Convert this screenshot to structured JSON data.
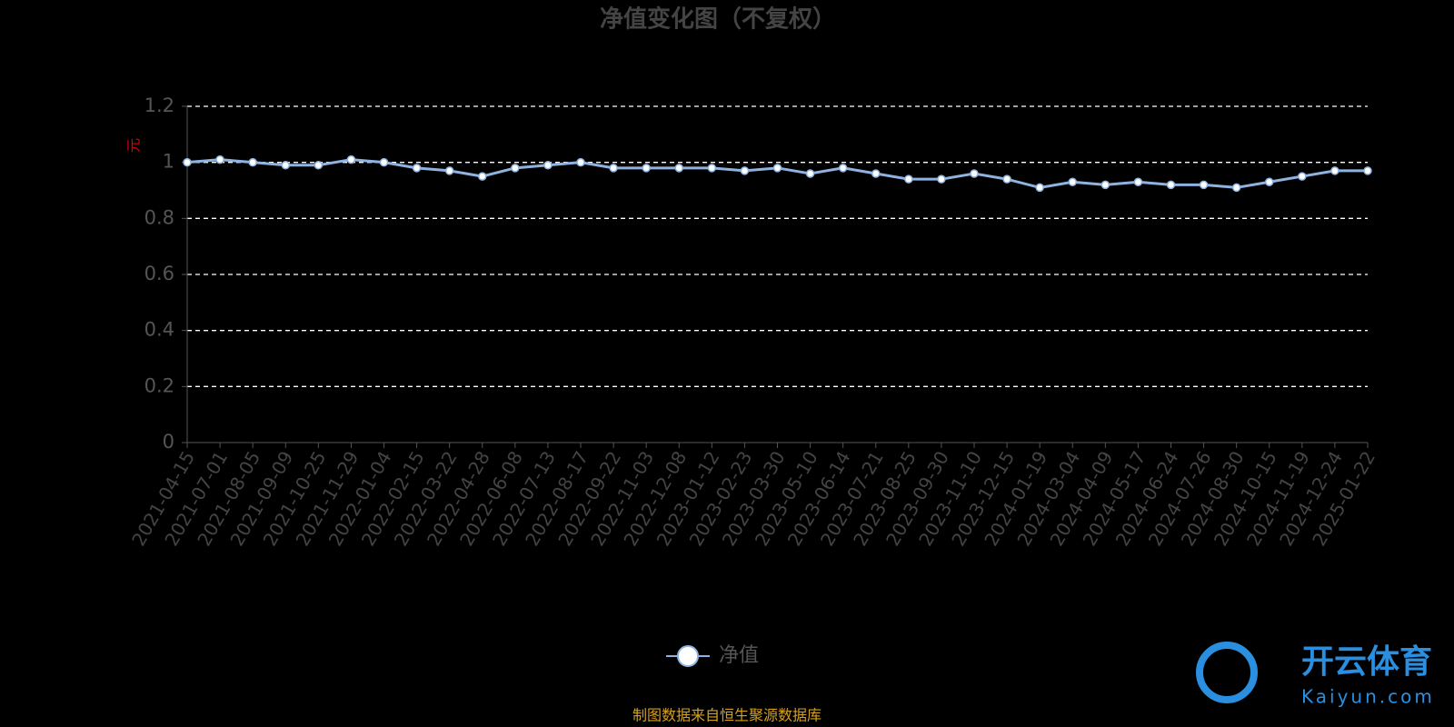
{
  "chart_data": {
    "type": "line",
    "title": "净值变化图（不复权）",
    "y_label": "元",
    "categories": [
      "2021-04-15",
      "2021-07-01",
      "2021-08-05",
      "2021-09-09",
      "2021-10-25",
      "2021-11-29",
      "2022-01-04",
      "2022-02-15",
      "2022-03-22",
      "2022-04-28",
      "2022-06-08",
      "2022-07-13",
      "2022-08-17",
      "2022-09-22",
      "2022-11-03",
      "2022-12-08",
      "2023-01-12",
      "2023-02-23",
      "2023-03-30",
      "2023-05-10",
      "2023-06-14",
      "2023-07-21",
      "2023-08-25",
      "2023-09-30",
      "2023-11-10",
      "2023-12-15",
      "2024-01-19",
      "2024-03-04",
      "2024-04-09",
      "2024-05-17",
      "2024-06-24",
      "2024-07-26",
      "2024-08-30",
      "2024-10-15",
      "2024-11-19",
      "2024-12-24",
      "2025-01-22"
    ],
    "series": [
      {
        "name": "净值",
        "color": "#8fb3e0",
        "values": [
          1.0,
          1.01,
          1.0,
          0.99,
          0.99,
          1.01,
          1.0,
          0.98,
          0.97,
          0.95,
          0.98,
          0.99,
          1.0,
          0.98,
          0.98,
          0.98,
          0.98,
          0.97,
          0.98,
          0.96,
          0.98,
          0.96,
          0.94,
          0.94,
          0.96,
          0.94,
          0.91,
          0.93,
          0.92,
          0.93,
          0.92,
          0.92,
          0.91,
          0.93,
          0.95,
          0.97,
          0.97
        ]
      }
    ],
    "ylim": [
      0,
      1.2
    ],
    "yticks": [
      0,
      0.2,
      0.4,
      0.6,
      0.8,
      1,
      1.2
    ],
    "grid": true
  },
  "source": "制图数据来自恒生聚源数据库",
  "watermark": {
    "brand": "开云体育",
    "url": "Kaiyun.com"
  }
}
